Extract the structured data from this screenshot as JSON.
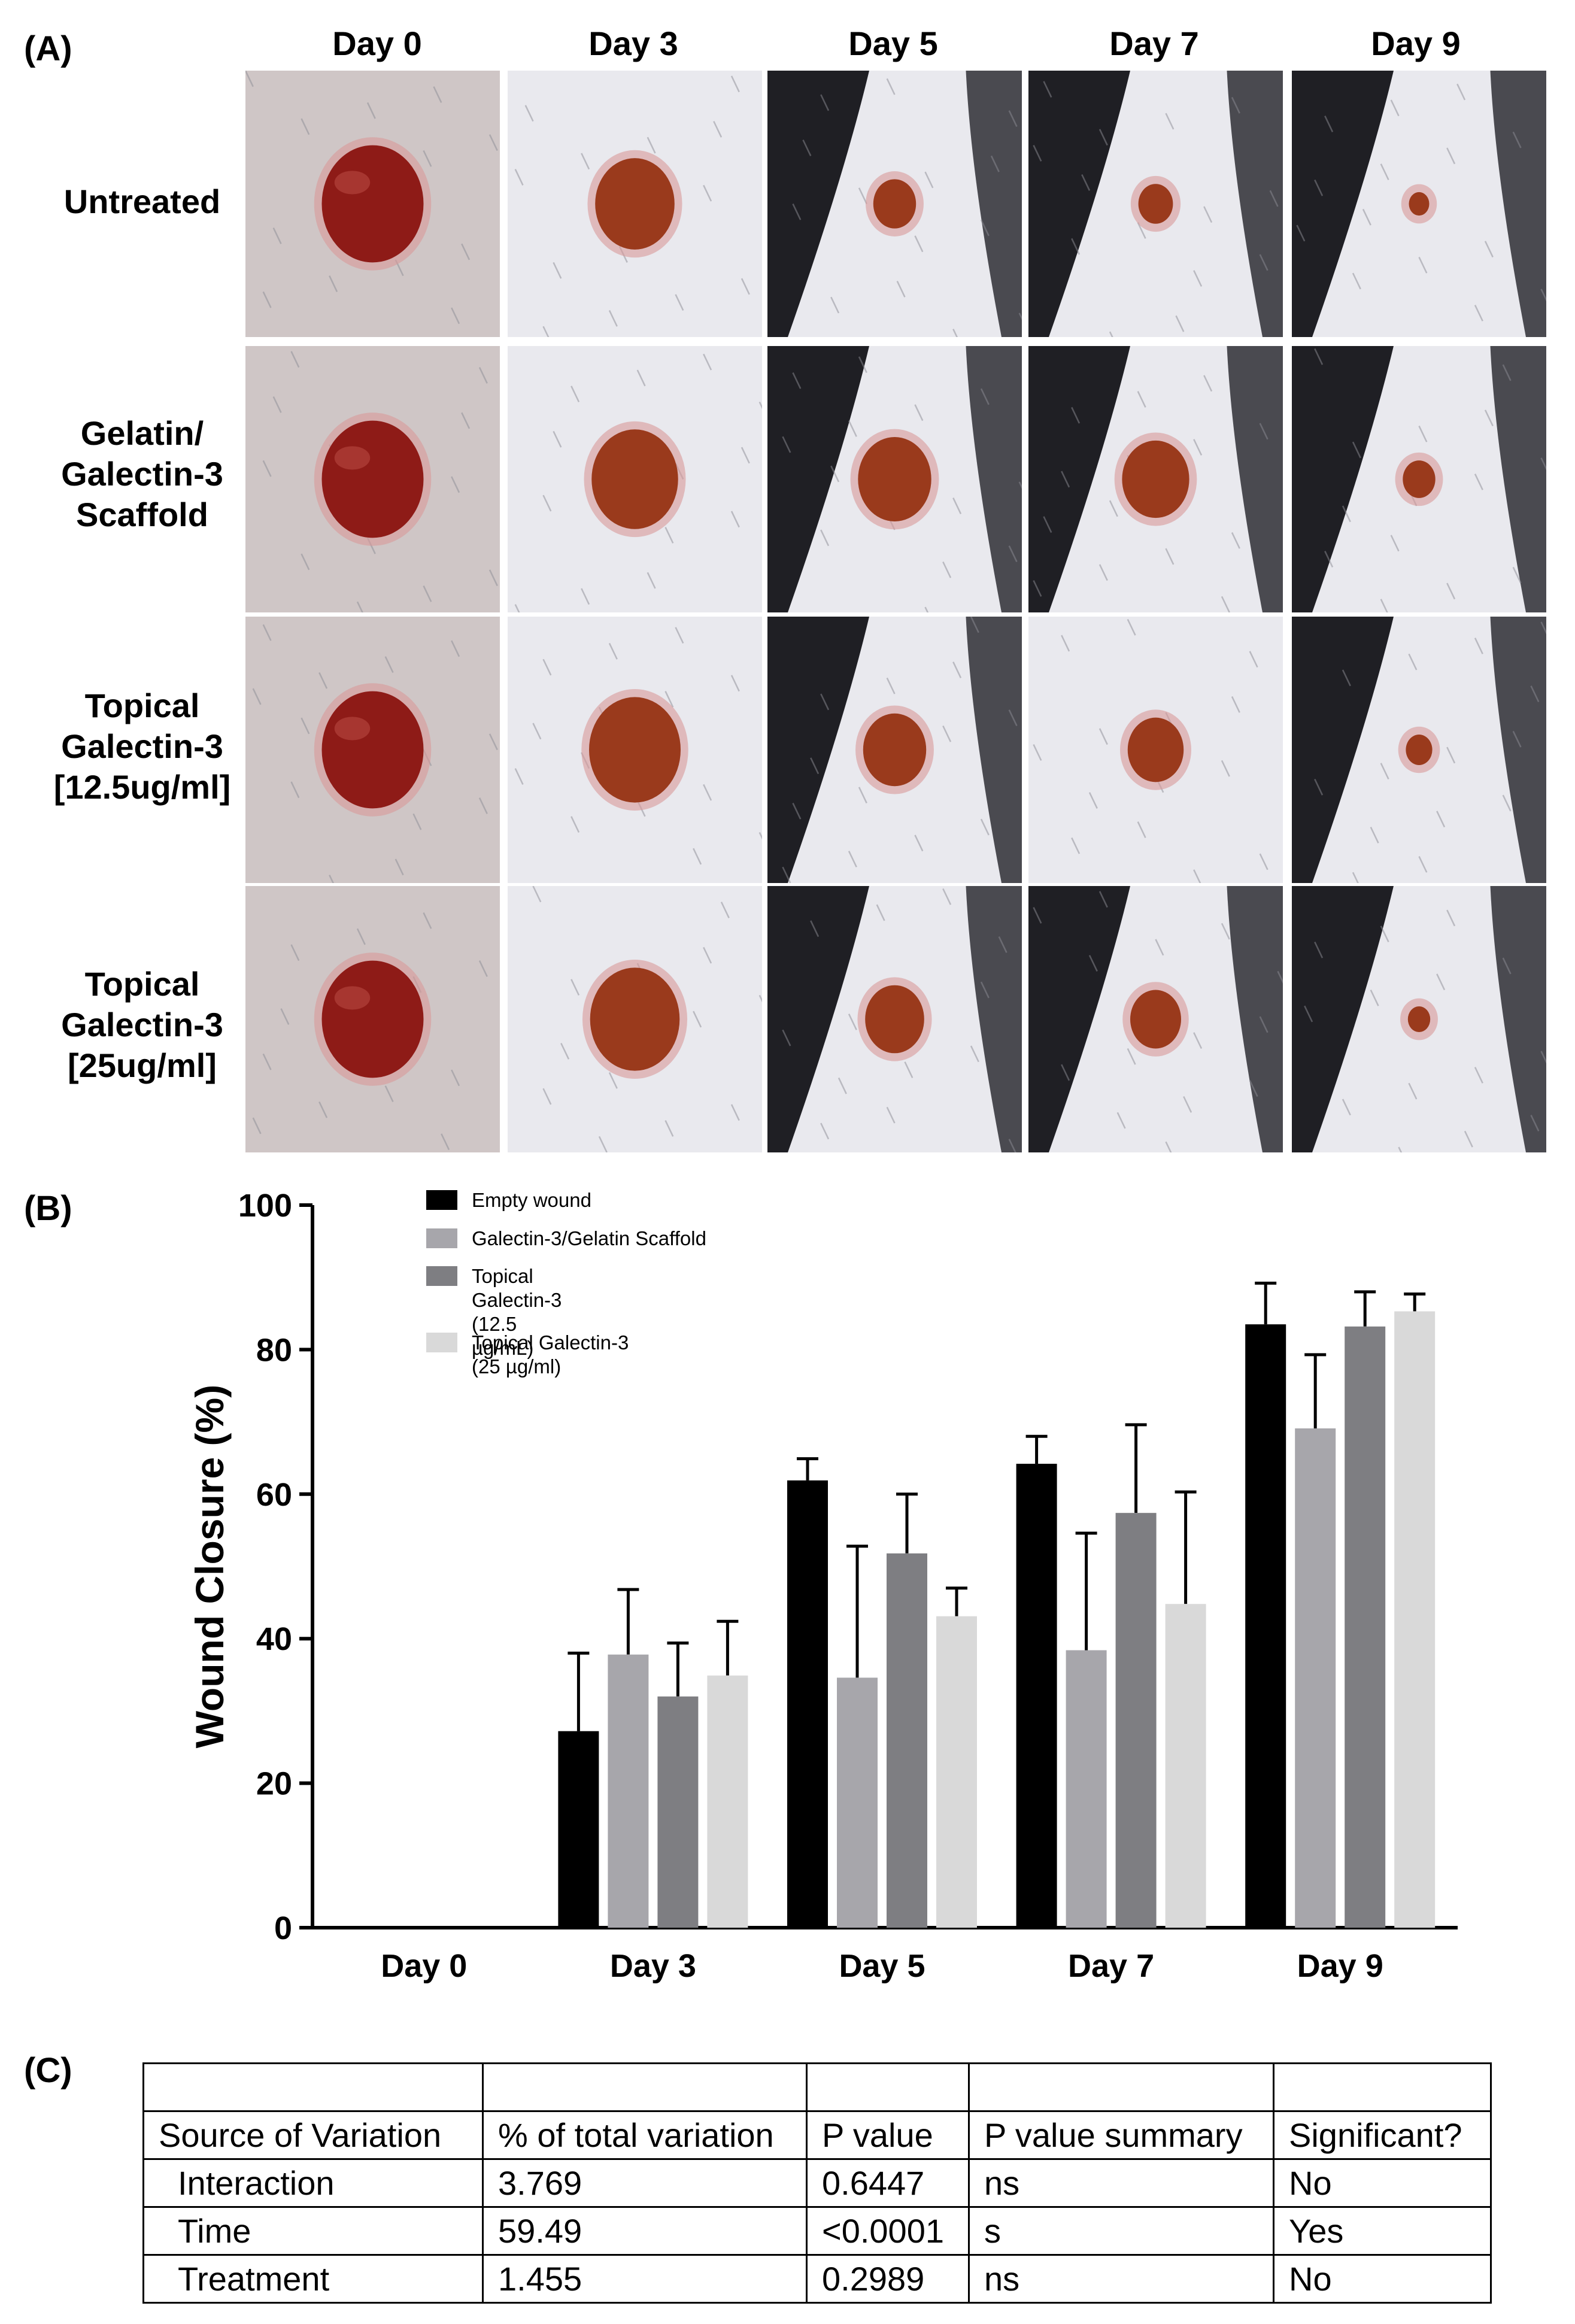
{
  "panel_labels": {
    "a": "(A)",
    "b": "(B)",
    "c": "(C)"
  },
  "photo_grid": {
    "columns": [
      "Day 0",
      "Day 3",
      "Day 5",
      "Day 7",
      "Day 9"
    ],
    "rows": [
      {
        "lines": [
          "Untreated"
        ]
      },
      {
        "lines": [
          "Gelatin/",
          "Galectin-3",
          "Scaffold"
        ]
      },
      {
        "lines": [
          "Topical",
          "Galectin-3",
          "[12.5ug/ml]"
        ]
      },
      {
        "lines": [
          "Topical",
          "Galectin-3",
          "[25ug/ml]"
        ]
      }
    ],
    "wound_scale": [
      [
        1.0,
        0.78,
        0.42,
        0.34,
        0.2
      ],
      [
        1.0,
        0.85,
        0.72,
        0.66,
        0.32
      ],
      [
        1.0,
        0.9,
        0.62,
        0.55,
        0.26
      ],
      [
        1.0,
        0.88,
        0.58,
        0.5,
        0.22
      ]
    ],
    "colors": {
      "fur": "#e9e9ee",
      "dark_fur": "#1f1f24",
      "fresh_wound": "#8e1b17",
      "scab": "#9a3a1c"
    }
  },
  "chart_data": {
    "type": "bar",
    "title": "",
    "xlabel": "",
    "ylabel": "Wound Closure (%)",
    "ylim": [
      0,
      100
    ],
    "yticks": [
      "0",
      "20",
      "40",
      "60",
      "80",
      "100"
    ],
    "categories": [
      "Day 0",
      "Day 3",
      "Day 5",
      "Day 7",
      "Day 9"
    ],
    "series": [
      {
        "name": "Empty wound",
        "color": "#000000",
        "values": [
          0,
          27.2,
          61.9,
          64.2,
          83.5
        ],
        "errors": [
          0,
          10.8,
          3.0,
          3.8,
          5.7
        ]
      },
      {
        "name": "Galectin-3/Gelatin Scaffold",
        "color": "#a7a6ab",
        "values": [
          0,
          37.8,
          34.6,
          38.4,
          69.1
        ],
        "errors": [
          0,
          9.0,
          18.2,
          16.2,
          10.2
        ]
      },
      {
        "name": "Topical Galectin-3 (12.5 µg/mL)",
        "color": "#7e7e82",
        "values": [
          0,
          32.0,
          51.8,
          57.4,
          83.2
        ],
        "errors": [
          0,
          7.4,
          8.2,
          12.2,
          4.8
        ]
      },
      {
        "name": "Topical Galectin-3 (25 µg/ml)",
        "color": "#d9d9d9",
        "values": [
          0,
          34.9,
          43.1,
          44.8,
          85.3
        ],
        "errors": [
          0,
          7.5,
          3.9,
          15.5,
          2.4
        ]
      }
    ],
    "legend_placement": "top-left",
    "legend_lines": [
      [
        "Empty wound"
      ],
      [
        "Galectin-3/Gelatin Scaffold"
      ],
      [
        "Topical",
        "Galectin-3",
        "(12.5",
        " µg/mL)"
      ],
      [
        "Topical Galectin-3",
        "(25 µg/ml)"
      ]
    ],
    "grid": false
  },
  "anova_table": {
    "rows": [
      [
        "",
        "",
        "",
        "",
        ""
      ],
      [
        "Source of Variation",
        "% of total variation",
        "P value",
        "P value summary",
        "Significant?"
      ],
      [
        "Interaction",
        "3.769",
        "0.6447",
        "ns",
        "No"
      ],
      [
        "Time",
        "59.49",
        "<0.0001",
        "s",
        "Yes"
      ],
      [
        "Treatment",
        "1.455",
        "0.2989",
        "ns",
        "No"
      ]
    ]
  }
}
